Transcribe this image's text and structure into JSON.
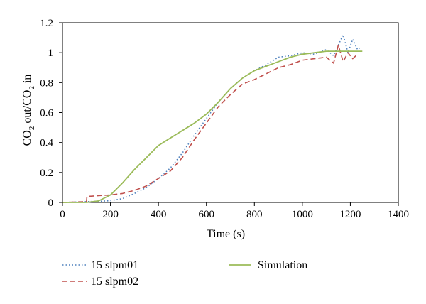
{
  "chart_data": {
    "type": "line",
    "xlabel": "Time (s)",
    "ylabel": {
      "prefix": "CO",
      "sub1": "2",
      "middle": " out/CO",
      "sub2": "2",
      "suffix": " in"
    },
    "xlim": [
      0,
      1400
    ],
    "ylim": [
      0,
      1.2
    ],
    "xticks": [
      0,
      200,
      400,
      600,
      800,
      1000,
      1200,
      1400
    ],
    "yticks": [
      0,
      0.2,
      0.4,
      0.6,
      0.8,
      1,
      1.2
    ],
    "xtick_labels": [
      "0",
      "200",
      "400",
      "600",
      "800",
      "1000",
      "1200",
      "1400"
    ],
    "ytick_labels": [
      "0",
      "0.2",
      "0.4",
      "0.6",
      "0.8",
      "1",
      "1.2"
    ],
    "grid": false,
    "legend_position": "bottom",
    "series": [
      {
        "name": "15 slpm01",
        "color": "#4f81bd",
        "style": "dotted",
        "x": [
          0,
          100,
          160,
          200,
          250,
          300,
          350,
          400,
          450,
          500,
          550,
          600,
          650,
          700,
          750,
          800,
          850,
          900,
          950,
          1000,
          1050,
          1100,
          1130,
          1150,
          1170,
          1190,
          1210,
          1230,
          1245
        ],
        "y": [
          0,
          0.005,
          0.008,
          0.012,
          0.025,
          0.06,
          0.1,
          0.16,
          0.23,
          0.33,
          0.45,
          0.56,
          0.67,
          0.76,
          0.83,
          0.88,
          0.92,
          0.97,
          0.98,
          1.0,
          0.99,
          1.02,
          0.98,
          1.05,
          1.12,
          1.0,
          1.09,
          1.02,
          1.04
        ]
      },
      {
        "name": "15 slpm02",
        "color": "#c0504d",
        "style": "dashed",
        "x": [
          0,
          100,
          102,
          150,
          200,
          250,
          300,
          350,
          400,
          450,
          500,
          550,
          600,
          650,
          700,
          750,
          800,
          850,
          900,
          950,
          1000,
          1050,
          1100,
          1130,
          1150,
          1170,
          1190,
          1210,
          1230
        ],
        "y": [
          0,
          0.005,
          0.04,
          0.045,
          0.05,
          0.06,
          0.08,
          0.11,
          0.16,
          0.21,
          0.3,
          0.42,
          0.53,
          0.64,
          0.72,
          0.79,
          0.82,
          0.86,
          0.9,
          0.92,
          0.95,
          0.96,
          0.97,
          0.93,
          1.05,
          0.94,
          1.0,
          0.96,
          0.99
        ]
      },
      {
        "name": "Simulation",
        "color": "#9bbb59",
        "style": "solid",
        "x": [
          0,
          100,
          150,
          200,
          250,
          300,
          350,
          400,
          450,
          500,
          550,
          600,
          650,
          700,
          750,
          800,
          850,
          900,
          950,
          1000,
          1050,
          1100,
          1150,
          1200,
          1250
        ],
        "y": [
          0,
          0.0,
          0.01,
          0.05,
          0.13,
          0.22,
          0.3,
          0.38,
          0.43,
          0.48,
          0.53,
          0.59,
          0.67,
          0.76,
          0.83,
          0.88,
          0.91,
          0.94,
          0.97,
          0.99,
          1.0,
          1.01,
          1.01,
          1.01,
          1.01
        ]
      }
    ]
  }
}
